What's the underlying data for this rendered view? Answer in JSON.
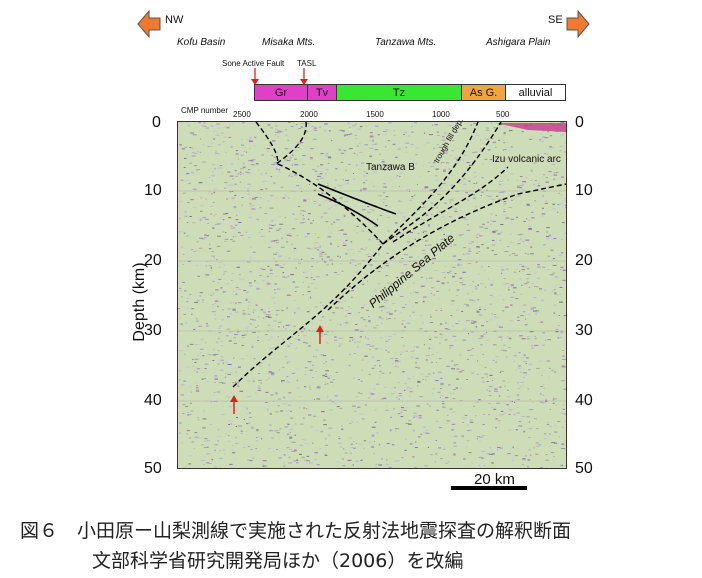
{
  "directions": {
    "left": "NW",
    "right": "SE"
  },
  "locations": [
    "Kofu Basin",
    "Misaka Mts.",
    "Tanzawa Mts.",
    "Ashigara Plain"
  ],
  "faults": {
    "sone": "Sone Active Fault",
    "tasl": "TASL"
  },
  "units": [
    {
      "label": "Gr",
      "color": "#e040c8"
    },
    {
      "label": "Tv",
      "color": "#e040c8"
    },
    {
      "label": "Tz",
      "color": "#39e632"
    },
    {
      "label": "As G.",
      "color": "#f0a640"
    },
    {
      "label": "alluvial",
      "color": "#ffffff"
    }
  ],
  "cmp": {
    "label": "CMP number",
    "ticks": [
      "2500",
      "2000",
      "1500",
      "1000",
      "500"
    ]
  },
  "depth_axis": {
    "label": "Depth (km)",
    "ticks": [
      "0",
      "10",
      "20",
      "30",
      "40",
      "50"
    ]
  },
  "annotations": {
    "tanzawa_b": "Tanzawa B",
    "trough_fill": "trough fill dep.",
    "izu_arc": "Izu volcanic arc",
    "philippine_plate": "Philippine Sea Plate"
  },
  "scale_bar": "20 km",
  "caption": {
    "line1": "図６　小田原ー山梨測線で実施された反射法地震探査の解釈断面",
    "line2": "文部科学省研究開発局ほか（2006）を改編"
  },
  "colors": {
    "arrow": "#f07a30",
    "section_bg": "#cfdcb8",
    "dots": "#7a4fb0",
    "red_arrow": "#e02020"
  }
}
